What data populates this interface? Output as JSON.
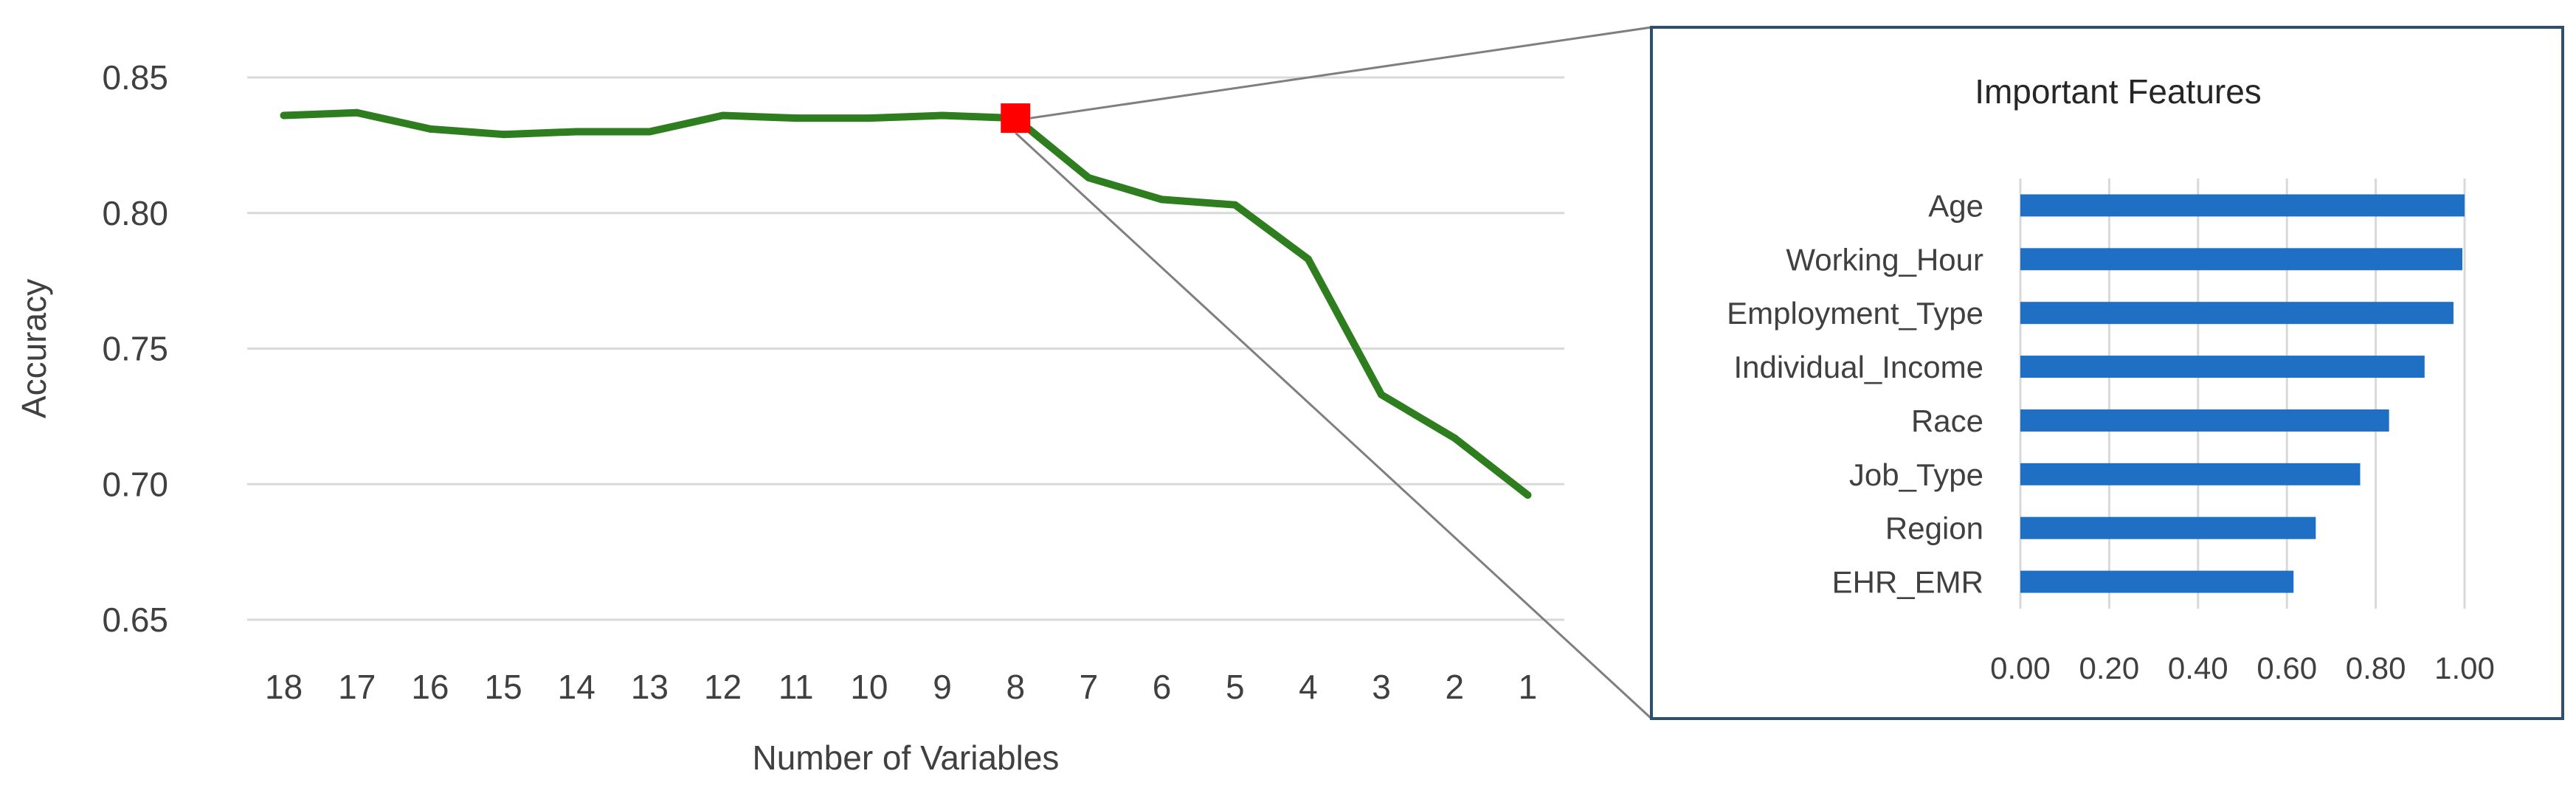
{
  "chart_data": [
    {
      "type": "line",
      "title": "",
      "xlabel": "Number of Variables",
      "ylabel": "Accuracy",
      "categories": [
        "18",
        "17",
        "16",
        "15",
        "14",
        "13",
        "12",
        "11",
        "10",
        "9",
        "8",
        "7",
        "6",
        "5",
        "4",
        "3",
        "2",
        "1"
      ],
      "series": [
        {
          "name": "",
          "values": [
            0.836,
            0.837,
            0.831,
            0.829,
            0.83,
            0.83,
            0.836,
            0.835,
            0.835,
            0.836,
            0.835,
            0.813,
            0.805,
            0.803,
            0.783,
            0.733,
            0.717,
            0.696
          ],
          "color": "#2e7d1f"
        }
      ],
      "yticks": [
        "0.65",
        "0.70",
        "0.75",
        "0.80",
        "0.85"
      ],
      "ylim": [
        0.65,
        0.85
      ],
      "grid": true,
      "highlight": {
        "category": "8",
        "value": 0.835,
        "color": "#ff0000"
      }
    },
    {
      "type": "bar",
      "orientation": "horizontal",
      "title": "Important Features",
      "categories": [
        "Age",
        "Working_Hour",
        "Employment_Type",
        "Individual_Income",
        "Race",
        "Job_Type",
        "Region",
        "EHR_EMR"
      ],
      "values": [
        1.0,
        0.995,
        0.975,
        0.91,
        0.83,
        0.765,
        0.665,
        0.615
      ],
      "xticks": [
        "0.00",
        "0.20",
        "0.40",
        "0.60",
        "0.80",
        "1.00"
      ],
      "xlim": [
        0,
        1.0
      ],
      "color": "#1f6fc5",
      "grid": true
    }
  ]
}
